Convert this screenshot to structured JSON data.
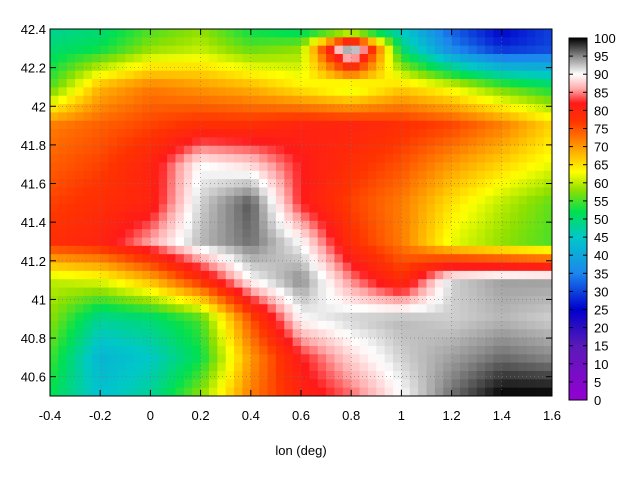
{
  "chart_data": {
    "type": "heatmap",
    "title": "",
    "xlabel": "lon (deg)",
    "ylabel": "",
    "xlim": [
      -0.4,
      1.6
    ],
    "ylim": [
      40.5,
      42.4
    ],
    "x_ticks": [
      "-0.4",
      "-0.2",
      "0",
      "0.2",
      "0.4",
      "0.6",
      "0.8",
      "1",
      "1.2",
      "1.4",
      "1.6"
    ],
    "y_ticks": [
      "40.6",
      "40.8",
      "41",
      "41.2",
      "41.4",
      "41.6",
      "41.8",
      "42",
      "42.2",
      "42.4"
    ],
    "x_tick_values": [
      -0.4,
      -0.2,
      0,
      0.2,
      0.4,
      0.6,
      0.8,
      1,
      1.2,
      1.4,
      1.6
    ],
    "y_tick_values": [
      40.6,
      40.8,
      41,
      41.2,
      41.4,
      41.6,
      41.8,
      42,
      42.2,
      42.4
    ],
    "colorbar": {
      "range": [
        0,
        100
      ],
      "ticks": [
        "0",
        "5",
        "10",
        "15",
        "20",
        "25",
        "30",
        "35",
        "40",
        "45",
        "50",
        "55",
        "60",
        "65",
        "70",
        "75",
        "80",
        "85",
        "90",
        "95",
        "100"
      ],
      "tick_values": [
        0,
        5,
        10,
        15,
        20,
        25,
        30,
        35,
        40,
        45,
        50,
        55,
        60,
        65,
        70,
        75,
        80,
        85,
        90,
        95,
        100
      ],
      "stops": [
        {
          "v": 0,
          "c": "#9400d3"
        },
        {
          "v": 15,
          "c": "#5a1ab8"
        },
        {
          "v": 25,
          "c": "#0000cc"
        },
        {
          "v": 35,
          "c": "#1c86ee"
        },
        {
          "v": 45,
          "c": "#00c8c8"
        },
        {
          "v": 52,
          "c": "#00e050"
        },
        {
          "v": 58,
          "c": "#8fe000"
        },
        {
          "v": 63,
          "c": "#ffff00"
        },
        {
          "v": 70,
          "c": "#ff9900"
        },
        {
          "v": 77,
          "c": "#ff3300"
        },
        {
          "v": 82,
          "c": "#ff1a1a"
        },
        {
          "v": 86,
          "c": "#ffaaaa"
        },
        {
          "v": 90,
          "c": "#ffffff"
        },
        {
          "v": 95,
          "c": "#888888"
        },
        {
          "v": 100,
          "c": "#000000"
        }
      ]
    },
    "grid": true,
    "field_grid": {
      "lon": [
        -0.4,
        -0.2,
        0.0,
        0.2,
        0.4,
        0.6,
        0.8,
        1.0,
        1.2,
        1.4,
        1.6
      ],
      "lat": [
        40.5,
        40.7,
        40.9,
        41.1,
        41.3,
        41.5,
        41.7,
        41.9,
        42.1,
        42.3,
        42.4
      ],
      "values": [
        [
          52,
          44,
          48,
          58,
          72,
          80,
          84,
          90,
          96,
          100,
          100
        ],
        [
          55,
          42,
          45,
          52,
          70,
          82,
          88,
          92,
          94,
          96,
          95
        ],
        [
          58,
          48,
          50,
          55,
          75,
          90,
          92,
          93,
          92,
          93,
          92
        ],
        [
          60,
          62,
          68,
          78,
          90,
          95,
          85,
          78,
          92,
          94,
          94
        ],
        [
          78,
          80,
          86,
          93,
          96,
          90,
          78,
          72,
          62,
          58,
          55
        ],
        [
          76,
          78,
          80,
          92,
          97,
          82,
          76,
          72,
          65,
          60,
          56
        ],
        [
          74,
          76,
          80,
          90,
          88,
          82,
          78,
          75,
          70,
          66,
          62
        ],
        [
          72,
          74,
          76,
          78,
          78,
          80,
          80,
          78,
          76,
          72,
          66
        ],
        [
          55,
          68,
          72,
          70,
          68,
          64,
          60,
          66,
          62,
          56,
          52
        ],
        [
          50,
          52,
          58,
          60,
          56,
          58,
          98,
          50,
          35,
          28,
          30
        ],
        [
          48,
          50,
          55,
          58,
          52,
          50,
          50,
          45,
          32,
          25,
          30
        ]
      ]
    }
  }
}
